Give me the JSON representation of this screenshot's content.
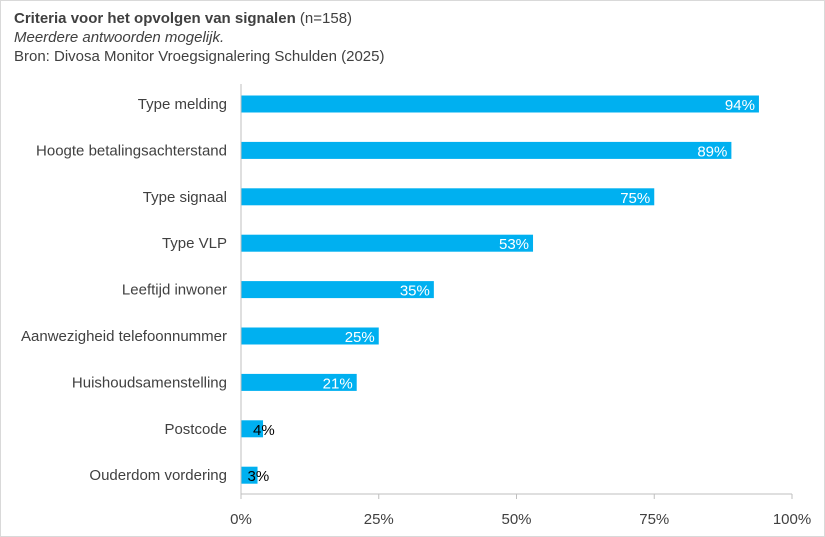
{
  "header": {
    "title": "Criteria voor het opvolgen van signalen",
    "title_n": "(n=158)",
    "subtitle": "Meerdere antwoorden mogelijk.",
    "source": "Bron: Divosa Monitor Vroegsignalering Schulden (2025)"
  },
  "chart_data": {
    "type": "bar",
    "orientation": "horizontal",
    "title": "Criteria voor het opvolgen van signalen (n=158)",
    "categories": [
      "Type melding",
      "Hoogte betalingsachterstand",
      "Type signaal",
      "Type VLP",
      "Leeftijd inwoner",
      "Aanwezigheid telefoonnummer",
      "Huishoudsamenstelling",
      "Postcode",
      "Ouderdom vordering"
    ],
    "values": [
      94,
      89,
      75,
      53,
      35,
      25,
      21,
      4,
      3
    ],
    "data_labels": [
      "94%",
      "89%",
      "75%",
      "53%",
      "35%",
      "25%",
      "21%",
      "4%",
      "3%"
    ],
    "xlim": [
      0,
      100
    ],
    "xticks": [
      0,
      25,
      50,
      75,
      100
    ],
    "xtick_labels": [
      "0%",
      "25%",
      "50%",
      "75%",
      "100%"
    ],
    "xlabel": "",
    "ylabel": "",
    "grid": false,
    "legend": "none",
    "bar_color": "#00B0F0"
  }
}
